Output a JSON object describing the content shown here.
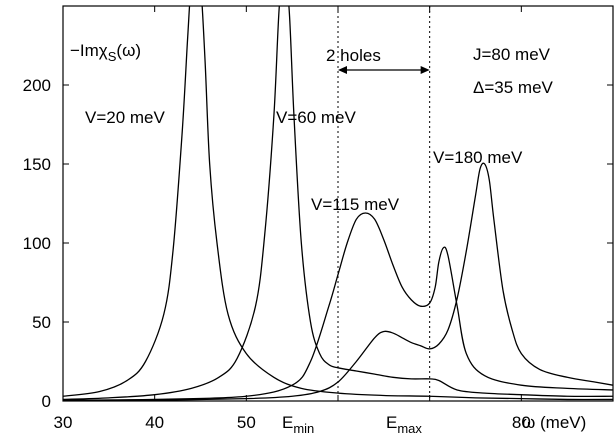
{
  "chart_data": {
    "type": "line",
    "title": "",
    "xlabel": "ω (meV)",
    "ylabel": "",
    "xlim": [
      30,
      90
    ],
    "ylim": [
      0,
      250
    ],
    "grid": false,
    "legend": "none",
    "x_ticks": [
      30,
      40,
      50,
      80
    ],
    "x_tick_labels": [
      "30",
      "40",
      "50",
      "80"
    ],
    "y_ticks": [
      0,
      50,
      100,
      150,
      200
    ],
    "y_tick_labels": [
      "0",
      "50",
      "100",
      "150",
      "200"
    ],
    "e_min": 60,
    "e_max": 70,
    "e_min_label": {
      "base": "E",
      "sub": "min"
    },
    "e_max_label": {
      "base": "E",
      "sub": "max"
    },
    "quantity_label": {
      "prefix": "−Imχ",
      "sub": "S",
      "suffix": "(ω)"
    },
    "two_holes_label": "2 holes",
    "params": [
      "J=80 meV",
      "Δ=35 meV"
    ],
    "series": [
      {
        "name": "V=20 meV",
        "x": [
          30,
          34,
          37,
          39,
          41,
          42,
          43,
          43.6,
          44,
          44.5,
          45,
          45.5,
          46,
          46.8,
          48,
          50,
          53,
          56,
          60,
          65,
          70,
          75,
          80,
          85,
          90
        ],
        "y": [
          3,
          6,
          13,
          25,
          55,
          95,
          170,
          230,
          265,
          275,
          265,
          215,
          150,
          100,
          55,
          30,
          15,
          8,
          5,
          3.5,
          3,
          2,
          1.5,
          1,
          1
        ]
      },
      {
        "name": "V=60 meV",
        "x": [
          30,
          35,
          40,
          44,
          47,
          49,
          51,
          52,
          53,
          53.6,
          54.2,
          54.7,
          55.2,
          56,
          57,
          58,
          59,
          60,
          62,
          64,
          66,
          68,
          70,
          71,
          73,
          76,
          80,
          85,
          90
        ],
        "y": [
          1,
          2,
          4,
          8,
          15,
          27,
          60,
          105,
          180,
          250,
          275,
          245,
          180,
          100,
          50,
          30,
          23,
          21,
          19,
          17,
          15,
          14,
          14,
          13,
          7,
          5,
          4,
          3,
          3
        ]
      },
      {
        "name": "V=115 meV",
        "x": [
          30,
          40,
          50,
          55,
          57,
          59,
          60,
          61,
          62,
          63,
          64,
          65,
          66,
          67,
          68,
          69,
          70,
          70.6,
          71,
          71.5,
          72,
          73,
          74,
          76,
          80,
          85,
          90
        ],
        "y": [
          0.5,
          1,
          3,
          10,
          25,
          60,
          80,
          100,
          115,
          119,
          115,
          102,
          86,
          72,
          64,
          60,
          62,
          72,
          88,
          97,
          92,
          60,
          30,
          16,
          10,
          8,
          7
        ]
      },
      {
        "name": "V=180 meV",
        "x": [
          30,
          40,
          50,
          55,
          58,
          60,
          62,
          64,
          65,
          66,
          67,
          68,
          69,
          70,
          71,
          72,
          73,
          74,
          75,
          75.5,
          76,
          76.5,
          77,
          78,
          79,
          80,
          82,
          85,
          88,
          90
        ],
        "y": [
          0.3,
          0.6,
          1.5,
          3,
          6,
          12,
          25,
          40,
          44,
          43,
          40,
          37,
          35,
          33,
          36,
          45,
          65,
          95,
          130,
          147,
          150,
          140,
          115,
          70,
          45,
          30,
          20,
          15,
          12,
          10
        ]
      }
    ]
  }
}
